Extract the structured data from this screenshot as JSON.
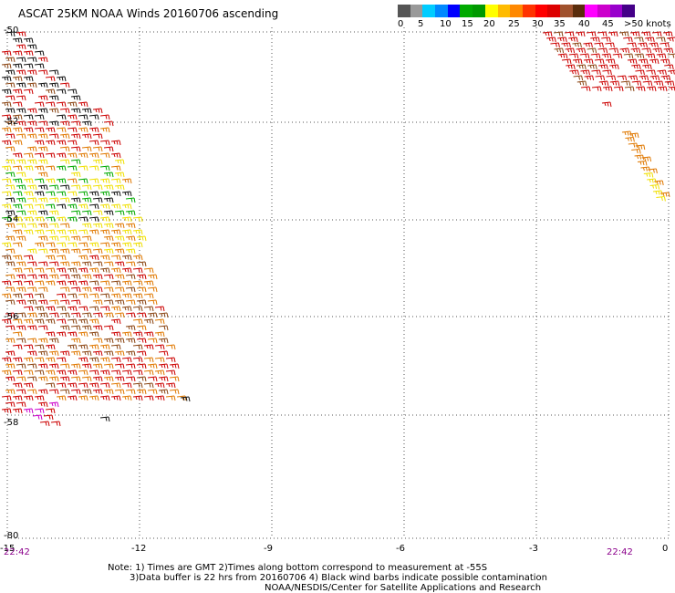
{
  "title": "ASCAT 25KM NOAA Winds 20160706 ascending",
  "legend": {
    "labels": [
      "0",
      "5",
      "10",
      "15",
      "20",
      "25",
      "30",
      "35",
      "40",
      "45",
      ">50 knots"
    ],
    "colors": [
      "#555555",
      "#999999",
      "#00ccff",
      "#0088ff",
      "#0000ff",
      "#00aa00",
      "#009900",
      "#ffff00",
      "#ffbb00",
      "#ff8800",
      "#ff3300",
      "#ff0000",
      "#dd0000",
      "#a0522d",
      "#5a2d0c",
      "#ff00ff",
      "#cc00cc",
      "#9900cc",
      "#440088"
    ]
  },
  "axes": {
    "x_labels": [
      "-15",
      "-12",
      "-9",
      "-6",
      "-3",
      "0"
    ],
    "y_labels": [
      "-50",
      "-52",
      "-54",
      "-56",
      "-58",
      "-80"
    ]
  },
  "times": {
    "left": "22:42",
    "right": "22:42"
  },
  "notes": [
    "Note: 1) Times are GMT 2)Times along bottom correspond to measurement at -55S",
    "3)Data buffer is 22 hrs from 20160706 4) Black wind barbs indicate possible contamination",
    "NOAA/NESDIS/Center for Satellite Applications and Research"
  ],
  "colors": {
    "grid": "#555555",
    "barb_black": "#111111",
    "barb_brown": "#8b4513",
    "barb_red": "#cc0000",
    "barb_orange": "#e07800",
    "barb_yellow": "#f0e000",
    "barb_green": "#00aa00",
    "barb_magenta": "#cc00cc",
    "time_text": "#8b008b"
  }
}
